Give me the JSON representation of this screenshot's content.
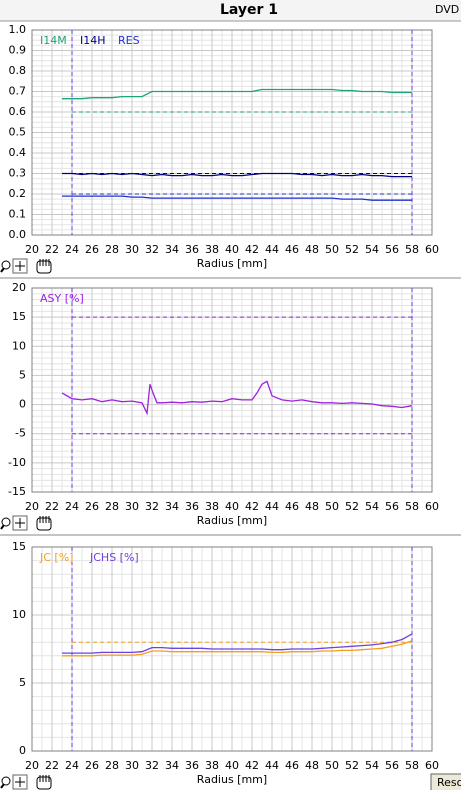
{
  "header": {
    "title": "Layer 1",
    "tab": "DVD"
  },
  "button": "Reso",
  "chart_data": [
    {
      "type": "line",
      "xlabel": "Radius [mm]",
      "xlim": [
        20,
        60
      ],
      "xticks": [
        20,
        22,
        24,
        26,
        28,
        30,
        32,
        34,
        36,
        38,
        40,
        42,
        44,
        46,
        48,
        50,
        52,
        54,
        56,
        58,
        60
      ],
      "ylim": [
        0,
        1
      ],
      "yticks": [
        {
          "value": 0,
          "label": "0.0"
        },
        0.1,
        0.2,
        0.3,
        0.4,
        0.5,
        0.6,
        0.7,
        0.8,
        0.9,
        {
          "value": 1,
          "label": "1.0"
        }
      ],
      "grid": true,
      "vlines": [
        24,
        58
      ],
      "vline_color": "#6a3ae0",
      "ref_lines": [
        {
          "value": 0.6,
          "color": "#1fa37a"
        },
        {
          "value": 0.3,
          "color": "#000080"
        },
        {
          "value": 0.2,
          "color": "#2030d0"
        }
      ],
      "x": [
        23,
        24,
        25,
        26,
        27,
        28,
        29,
        30,
        31,
        32,
        33,
        34,
        35,
        36,
        37,
        38,
        39,
        40,
        41,
        42,
        43,
        44,
        45,
        46,
        47,
        48,
        49,
        50,
        51,
        52,
        53,
        54,
        55,
        56,
        57,
        58
      ],
      "series": [
        {
          "name": "I14M",
          "color": "#1fa37a",
          "values": [
            0.665,
            0.665,
            0.665,
            0.67,
            0.67,
            0.67,
            0.675,
            0.675,
            0.675,
            0.7,
            0.7,
            0.7,
            0.7,
            0.7,
            0.7,
            0.7,
            0.7,
            0.7,
            0.7,
            0.7,
            0.71,
            0.71,
            0.71,
            0.71,
            0.71,
            0.71,
            0.71,
            0.71,
            0.705,
            0.705,
            0.7,
            0.7,
            0.7,
            0.695,
            0.695,
            0.695
          ]
        },
        {
          "name": "I14H",
          "color": "#000080",
          "values": [
            0.3,
            0.3,
            0.295,
            0.3,
            0.295,
            0.3,
            0.295,
            0.3,
            0.295,
            0.29,
            0.295,
            0.29,
            0.29,
            0.295,
            0.29,
            0.29,
            0.295,
            0.29,
            0.29,
            0.295,
            0.3,
            0.3,
            0.3,
            0.3,
            0.295,
            0.295,
            0.29,
            0.295,
            0.29,
            0.29,
            0.295,
            0.29,
            0.29,
            0.285,
            0.285,
            0.285
          ]
        },
        {
          "name": "RES",
          "color": "#2030d0",
          "values": [
            0.19,
            0.19,
            0.19,
            0.19,
            0.19,
            0.19,
            0.19,
            0.185,
            0.185,
            0.18,
            0.18,
            0.18,
            0.18,
            0.18,
            0.18,
            0.18,
            0.18,
            0.18,
            0.18,
            0.18,
            0.18,
            0.18,
            0.18,
            0.18,
            0.18,
            0.18,
            0.18,
            0.18,
            0.175,
            0.175,
            0.175,
            0.17,
            0.17,
            0.17,
            0.17,
            0.17
          ]
        }
      ]
    },
    {
      "type": "line",
      "xlabel": "Radius [mm]",
      "xlim": [
        20,
        60
      ],
      "xticks": [
        20,
        22,
        24,
        26,
        28,
        30,
        32,
        34,
        36,
        38,
        40,
        42,
        44,
        46,
        48,
        50,
        52,
        54,
        56,
        58,
        60
      ],
      "ylim": [
        -15,
        20
      ],
      "yticks": [
        -15,
        -10,
        -5,
        0,
        5,
        10,
        15,
        20
      ],
      "grid": true,
      "vlines": [
        24,
        58
      ],
      "vline_color": "#6a3ae0",
      "ref_lines": [
        {
          "value": 15,
          "color": "#a020e0"
        },
        {
          "value": -5,
          "color": "#a020e0"
        }
      ],
      "x": [
        23,
        24,
        25,
        26,
        27,
        28,
        29,
        30,
        31,
        31.5,
        31.8,
        32.1,
        32.5,
        33,
        34,
        35,
        36,
        37,
        38,
        39,
        40,
        41,
        42,
        42.5,
        43,
        43.5,
        44,
        45,
        46,
        47,
        48,
        49,
        50,
        51,
        52,
        53,
        54,
        55,
        56,
        57,
        58
      ],
      "series": [
        {
          "name": "ASY [%]",
          "color": "#a020e0",
          "values": [
            2,
            1,
            0.8,
            1,
            0.5,
            0.8,
            0.5,
            0.6,
            0.3,
            -1.5,
            3.5,
            2,
            0.3,
            0.3,
            0.4,
            0.3,
            0.5,
            0.4,
            0.6,
            0.5,
            1,
            0.8,
            0.8,
            2,
            3.5,
            4,
            1.5,
            0.8,
            0.6,
            0.8,
            0.5,
            0.3,
            0.3,
            0.2,
            0.3,
            0.2,
            0.1,
            -0.2,
            -0.3,
            -0.5,
            -0.2
          ]
        }
      ]
    },
    {
      "type": "line",
      "xlabel": "Radius [mm]",
      "xlim": [
        20,
        60
      ],
      "xticks": [
        20,
        22,
        24,
        26,
        28,
        30,
        32,
        34,
        36,
        38,
        40,
        42,
        44,
        46,
        48,
        50,
        52,
        54,
        56,
        58,
        60
      ],
      "ylim": [
        0,
        15
      ],
      "yticks": [
        0,
        5,
        10,
        15
      ],
      "grid": true,
      "vlines": [
        24,
        58
      ],
      "vline_color": "#6a3ae0",
      "ref_lines": [
        {
          "value": 8,
          "color": "#f0a020"
        }
      ],
      "x": [
        23,
        24,
        25,
        26,
        27,
        28,
        29,
        30,
        31,
        32,
        33,
        34,
        35,
        36,
        37,
        38,
        39,
        40,
        41,
        42,
        43,
        44,
        45,
        46,
        47,
        48,
        49,
        50,
        51,
        52,
        53,
        54,
        55,
        56,
        57,
        58
      ],
      "series": [
        {
          "name": "JC [%]",
          "color": "#f0a020",
          "values": [
            7.0,
            7.0,
            7.0,
            7.0,
            7.05,
            7.05,
            7.05,
            7.05,
            7.1,
            7.35,
            7.35,
            7.3,
            7.3,
            7.3,
            7.3,
            7.3,
            7.3,
            7.3,
            7.3,
            7.3,
            7.3,
            7.25,
            7.25,
            7.3,
            7.3,
            7.3,
            7.35,
            7.35,
            7.4,
            7.4,
            7.45,
            7.5,
            7.55,
            7.7,
            7.85,
            8.1
          ]
        },
        {
          "name": "JCHS [%]",
          "color": "#7040e0",
          "values": [
            7.2,
            7.2,
            7.2,
            7.2,
            7.25,
            7.25,
            7.25,
            7.25,
            7.3,
            7.6,
            7.6,
            7.55,
            7.55,
            7.55,
            7.55,
            7.5,
            7.5,
            7.5,
            7.5,
            7.5,
            7.5,
            7.45,
            7.45,
            7.5,
            7.5,
            7.5,
            7.55,
            7.6,
            7.65,
            7.7,
            7.75,
            7.8,
            7.9,
            8.0,
            8.2,
            8.6
          ]
        }
      ]
    }
  ]
}
